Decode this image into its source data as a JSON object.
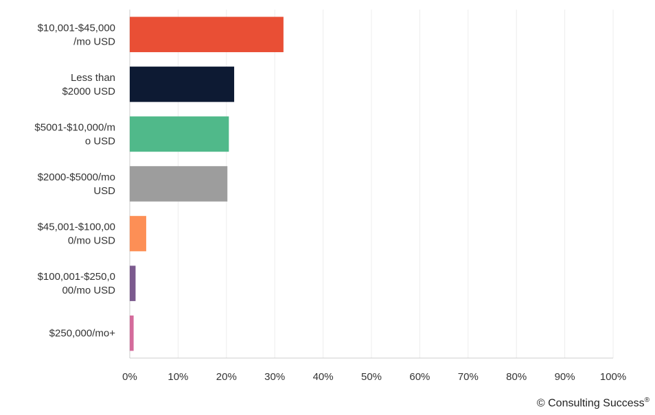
{
  "chart_data": {
    "type": "bar",
    "orientation": "horizontal",
    "categories": [
      [
        "$10,001-$45,000",
        "/mo USD"
      ],
      [
        "Less than",
        "$2000 USD"
      ],
      [
        "$5001-$10,000/m",
        "o USD"
      ],
      [
        "$2000-$5000/mo",
        "USD"
      ],
      [
        "$45,001-$100,00",
        "0/mo USD"
      ],
      [
        "$100,001-$250,0",
        "00/mo USD"
      ],
      [
        "$250,000/mo+"
      ]
    ],
    "values": [
      31.8,
      21.6,
      20.5,
      20.2,
      3.4,
      1.2,
      0.8
    ],
    "colors": [
      "#e94f35",
      "#0d1a33",
      "#50b98a",
      "#9d9d9d",
      "#fd8f56",
      "#7b5a8e",
      "#d46b9b"
    ],
    "xlim": [
      0,
      100
    ],
    "xticks": [
      "0%",
      "10%",
      "20%",
      "30%",
      "40%",
      "50%",
      "60%",
      "70%",
      "80%",
      "90%",
      "100%"
    ],
    "grid": true,
    "title": "",
    "xlabel": "",
    "ylabel": ""
  },
  "footer": {
    "credit": "© Consulting Success",
    "credit_mark": "®"
  }
}
